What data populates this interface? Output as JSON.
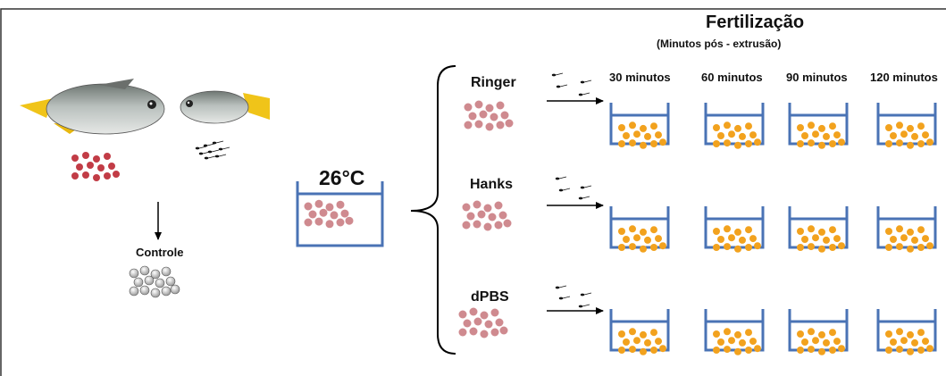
{
  "title": "Fertilização",
  "subtitle": "(Minutos pós - extrusão)",
  "temperature": "26°C",
  "control_label": "Controle",
  "media": [
    "Ringer",
    "Hanks",
    "dPBS"
  ],
  "time_points": [
    "30 minutos",
    "60 minutos",
    "90 minutos",
    "120 minutos"
  ],
  "colors": {
    "container": "#4a73b5",
    "egg_pink": "#cf8a8f",
    "egg_red": "#c23c46",
    "egg_orange": "#f2a21e",
    "egg_grey": "#c8c8c8",
    "fish_fin": "#f0c419",
    "fish_body": "#9aa3a0"
  },
  "icons": [
    "female-fish-icon",
    "male-fish-icon",
    "sperm-icon",
    "egg-icon",
    "arrow-icon",
    "brace-icon",
    "container-icon"
  ]
}
